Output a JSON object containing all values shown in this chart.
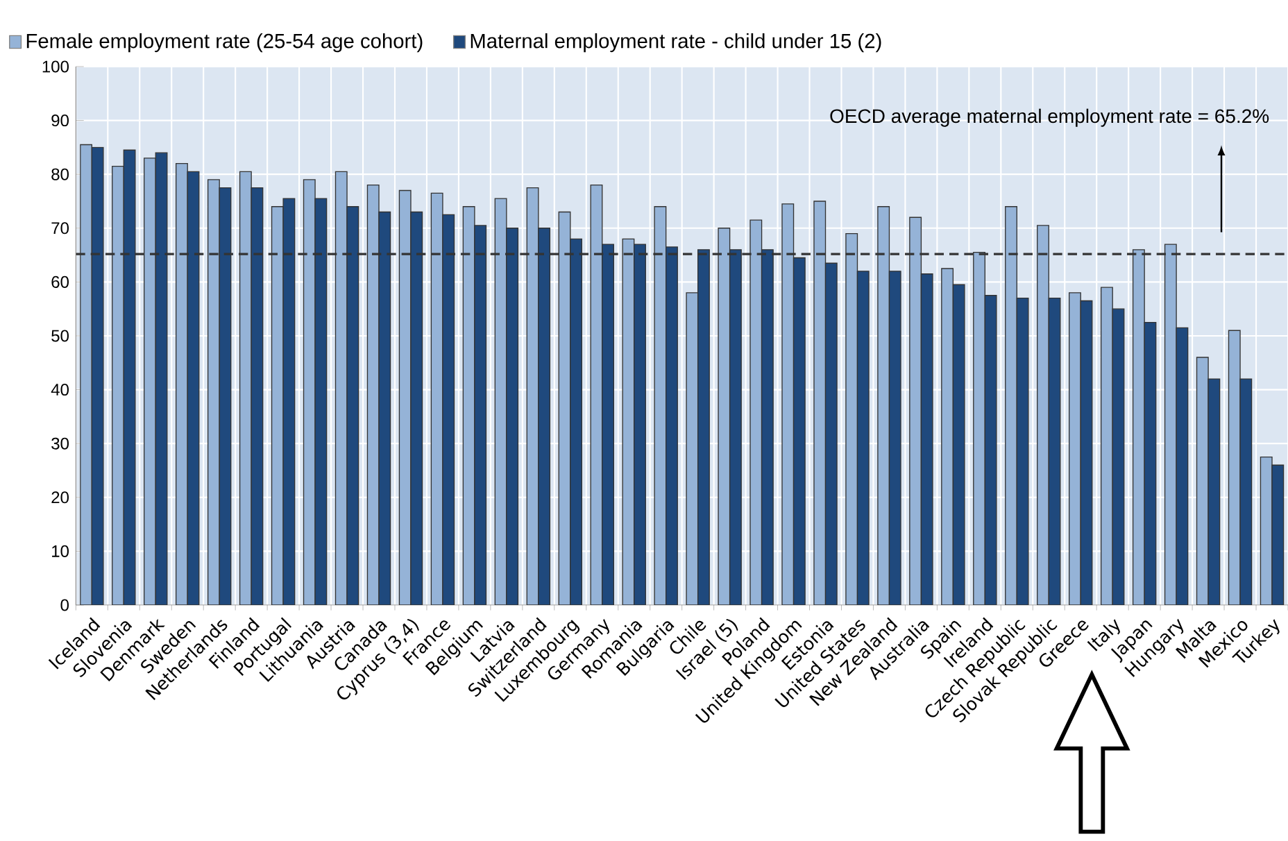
{
  "chart_data": {
    "type": "bar",
    "categories": [
      "Iceland",
      "Slovenia",
      "Denmark",
      "Sweden",
      "Netherlands",
      "Finland",
      "Portugal",
      "Lithuania",
      "Austria",
      "Canada",
      "Cyprus (3,4)",
      "France",
      "Belgium",
      "Latvia",
      "Switzerland",
      "Luxembourg",
      "Germany",
      "Romania",
      "Bulgaria",
      "Chile",
      "Israel (5)",
      "Poland",
      "United Kingdom",
      "Estonia",
      "United States",
      "New Zealand",
      "Australia",
      "Spain",
      "Ireland",
      "Czech Republic",
      "Slovak Republic",
      "Greece",
      "Italy",
      "Japan",
      "Hungary",
      "Malta",
      "Mexico",
      "Turkey"
    ],
    "series": [
      {
        "name": "Female employment rate (25-54 age cohort)",
        "color": "#95b3d7",
        "values": [
          85.5,
          81.5,
          83,
          82,
          79,
          80.5,
          74,
          79,
          80.5,
          78,
          77,
          76.5,
          74,
          75.5,
          77.5,
          73,
          78,
          68,
          74,
          58,
          70,
          71.5,
          74.5,
          75,
          69,
          74,
          72,
          62.5,
          65.5,
          74,
          70.5,
          58,
          59,
          66,
          67,
          46,
          51,
          27.5
        ]
      },
      {
        "name": "Maternal employment rate - child under 15 (2)",
        "color": "#1f497d",
        "values": [
          85,
          84.5,
          84,
          80.5,
          77.5,
          77.5,
          75.5,
          75.5,
          74,
          73,
          73,
          72.5,
          70.5,
          70,
          70,
          68,
          67,
          67,
          66.5,
          66,
          66,
          66,
          64.5,
          63.5,
          62,
          62,
          61.5,
          59.5,
          57.5,
          57,
          57,
          56.5,
          55,
          52.5,
          51.5,
          42,
          42,
          26
        ]
      }
    ],
    "ylim": [
      0,
      100
    ],
    "yticks": [
      0,
      10,
      20,
      30,
      40,
      50,
      60,
      70,
      80,
      90,
      100
    ],
    "grid": true,
    "legend": "top",
    "ref_lines": [
      {
        "axis": "y",
        "value": 65.2,
        "line_style": "dashed"
      }
    ],
    "annotations": [
      "OECD average maternal employment rate = 65.2%"
    ]
  }
}
